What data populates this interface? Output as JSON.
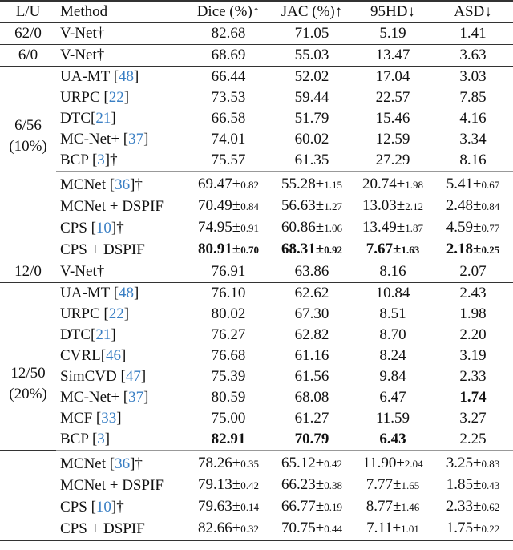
{
  "header": [
    "L/U",
    "Method",
    "Dice (%)↑",
    "JAC (%)↑",
    "95HD↓",
    "ASD↓"
  ],
  "groups": [
    {
      "label": [
        "62/0"
      ],
      "sections": [
        [
          {
            "name": "V-Net",
            "suffix": "†",
            "vals": [
              {
                "v": "82.68"
              },
              {
                "v": "71.05"
              },
              {
                "v": "5.19"
              },
              {
                "v": "1.41"
              }
            ]
          }
        ]
      ]
    },
    {
      "label": [
        "6/0"
      ],
      "sections": [
        [
          {
            "name": "V-Net",
            "suffix": "†",
            "vals": [
              {
                "v": "68.69"
              },
              {
                "v": "55.03"
              },
              {
                "v": "13.47"
              },
              {
                "v": "3.63"
              }
            ]
          }
        ]
      ]
    },
    {
      "label": [
        "6/56",
        "(10%)"
      ],
      "sections": [
        [
          {
            "name": "UA-MT ",
            "ref": "48",
            "vals": [
              {
                "v": "66.44"
              },
              {
                "v": "52.02"
              },
              {
                "v": "17.04"
              },
              {
                "v": "3.03"
              }
            ]
          },
          {
            "name": "URPC ",
            "ref": "22",
            "vals": [
              {
                "v": "73.53"
              },
              {
                "v": "59.44"
              },
              {
                "v": "22.57"
              },
              {
                "v": "7.85"
              }
            ]
          },
          {
            "name": "DTC",
            "ref": "21",
            "vals": [
              {
                "v": "66.58"
              },
              {
                "v": "51.79"
              },
              {
                "v": "15.46"
              },
              {
                "v": "4.16"
              }
            ]
          },
          {
            "name": "MC-Net+ ",
            "ref": "37",
            "vals": [
              {
                "v": "74.01"
              },
              {
                "v": "60.02"
              },
              {
                "v": "12.59"
              },
              {
                "v": "3.34"
              }
            ]
          },
          {
            "name": "BCP ",
            "ref": "3",
            "suffix": "†",
            "vals": [
              {
                "v": "75.57"
              },
              {
                "v": "61.35"
              },
              {
                "v": "27.29"
              },
              {
                "v": "8.16"
              }
            ]
          }
        ],
        [
          {
            "name": "MCNet ",
            "ref": "36",
            "suffix": "†",
            "vals": [
              {
                "v": "69.47",
                "sd": "±0.82"
              },
              {
                "v": "55.28",
                "sd": "±1.15"
              },
              {
                "v": "20.74",
                "sd": "±1.98"
              },
              {
                "v": "5.41",
                "sd": "±0.67"
              }
            ]
          },
          {
            "name": "MCNet + DSPIF",
            "vals": [
              {
                "v": "70.49",
                "sd": "±0.84"
              },
              {
                "v": "56.63",
                "sd": "±1.27"
              },
              {
                "v": "13.03",
                "sd": "±2.12"
              },
              {
                "v": "2.48",
                "sd": "±0.84"
              }
            ]
          },
          {
            "name": "CPS ",
            "ref": "10",
            "suffix": "†",
            "vals": [
              {
                "v": "74.95",
                "sd": "±0.91"
              },
              {
                "v": "60.86",
                "sd": "±1.06"
              },
              {
                "v": "13.49",
                "sd": "±1.87"
              },
              {
                "v": "4.59",
                "sd": "±0.77"
              }
            ]
          },
          {
            "name": "CPS + DSPIF",
            "vals": [
              {
                "v": "80.91",
                "sd": "±0.70",
                "bold": true
              },
              {
                "v": "68.31",
                "sd": "±0.92",
                "bold": true
              },
              {
                "v": "7.67",
                "sd": "±1.63",
                "bold": true
              },
              {
                "v": "2.18",
                "sd": "±0.25",
                "bold": true
              }
            ]
          }
        ]
      ]
    },
    {
      "label": [
        "12/0"
      ],
      "sections": [
        [
          {
            "name": "V-Net",
            "suffix": "†",
            "vals": [
              {
                "v": "76.91"
              },
              {
                "v": "63.86"
              },
              {
                "v": "8.16"
              },
              {
                "v": "2.07"
              }
            ]
          }
        ]
      ]
    },
    {
      "label": [
        "12/50",
        "(20%)"
      ],
      "sections": [
        [
          {
            "name": "UA-MT ",
            "ref": "48",
            "vals": [
              {
                "v": "76.10"
              },
              {
                "v": "62.62"
              },
              {
                "v": "10.84"
              },
              {
                "v": "2.43"
              }
            ]
          },
          {
            "name": "URPC ",
            "ref": "22",
            "vals": [
              {
                "v": "80.02"
              },
              {
                "v": "67.30"
              },
              {
                "v": "8.51"
              },
              {
                "v": "1.98"
              }
            ]
          },
          {
            "name": "DTC",
            "ref": "21",
            "vals": [
              {
                "v": "76.27"
              },
              {
                "v": "62.82"
              },
              {
                "v": "8.70"
              },
              {
                "v": "2.20"
              }
            ]
          },
          {
            "name": "CVRL",
            "ref": "46",
            "vals": [
              {
                "v": "76.68"
              },
              {
                "v": "61.16"
              },
              {
                "v": "8.24"
              },
              {
                "v": "3.19"
              }
            ]
          },
          {
            "name": "SimCVD ",
            "ref": "47",
            "vals": [
              {
                "v": "75.39"
              },
              {
                "v": "61.56"
              },
              {
                "v": "9.84"
              },
              {
                "v": "2.33"
              }
            ]
          },
          {
            "name": "MC-Net+ ",
            "ref": "37",
            "vals": [
              {
                "v": "80.59"
              },
              {
                "v": "68.08"
              },
              {
                "v": "6.47"
              },
              {
                "v": "1.74",
                "bold": true
              }
            ]
          },
          {
            "name": "MCF ",
            "ref": "33",
            "vals": [
              {
                "v": "75.00"
              },
              {
                "v": "61.27"
              },
              {
                "v": "11.59"
              },
              {
                "v": "3.27"
              }
            ]
          },
          {
            "name": "BCP ",
            "ref": "3",
            "vals": [
              {
                "v": "82.91",
                "bold": true
              },
              {
                "v": "70.79",
                "bold": true
              },
              {
                "v": "6.43",
                "bold": true
              },
              {
                "v": "2.25"
              }
            ]
          }
        ],
        [
          {
            "name": "MCNet ",
            "ref": "36",
            "suffix": "†",
            "vals": [
              {
                "v": "78.26",
                "sd": "±0.35"
              },
              {
                "v": "65.12",
                "sd": "±0.42"
              },
              {
                "v": "11.90",
                "sd": "±2.04"
              },
              {
                "v": "3.25",
                "sd": "±0.83"
              }
            ]
          },
          {
            "name": "MCNet + DSPIF",
            "vals": [
              {
                "v": "79.13",
                "sd": "±0.42"
              },
              {
                "v": "66.23",
                "sd": "±0.38"
              },
              {
                "v": "7.77",
                "sd": "±1.65"
              },
              {
                "v": "1.85",
                "sd": "±0.43"
              }
            ]
          },
          {
            "name": "CPS ",
            "ref": "10",
            "suffix": "†",
            "vals": [
              {
                "v": "79.63",
                "sd": "±0.14"
              },
              {
                "v": "66.77",
                "sd": "±0.19"
              },
              {
                "v": "8.77",
                "sd": "±1.46"
              },
              {
                "v": "2.33",
                "sd": "±0.62"
              }
            ]
          },
          {
            "name": "CPS + DSPIF",
            "vals": [
              {
                "v": "82.66",
                "sd": "±0.32"
              },
              {
                "v": "70.75",
                "sd": "±0.44"
              },
              {
                "v": "7.11",
                "sd": "±1.01"
              },
              {
                "v": "1.75",
                "sd": "±0.22"
              }
            ]
          }
        ]
      ]
    }
  ]
}
